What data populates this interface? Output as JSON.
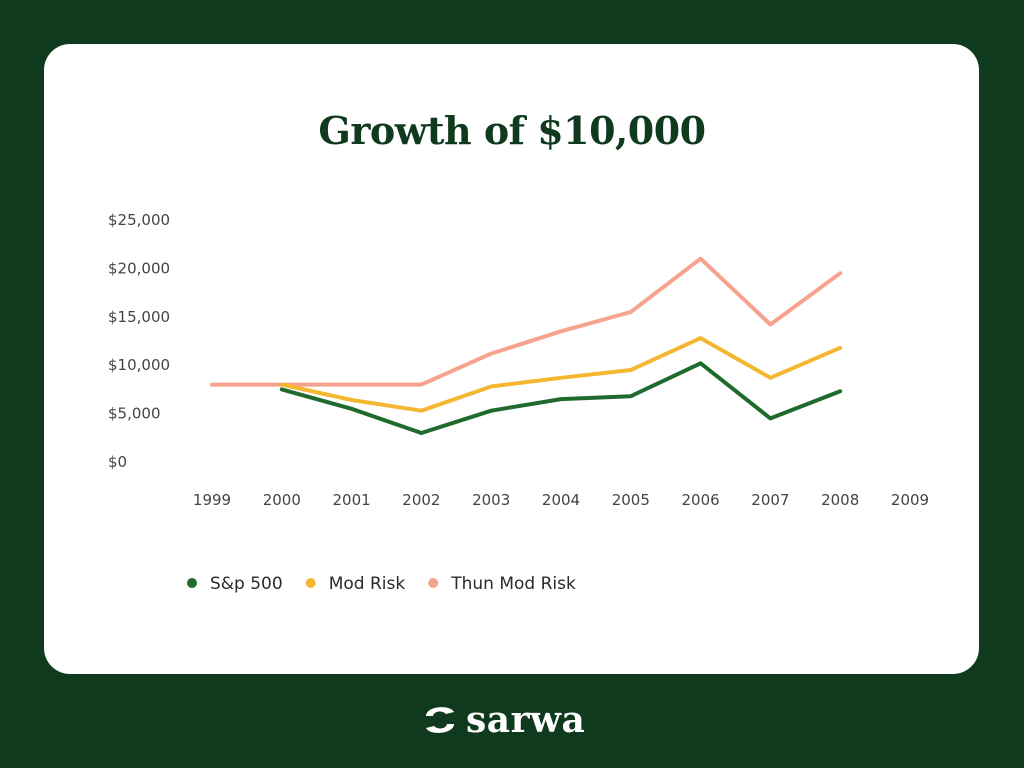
{
  "chart_data": {
    "type": "line",
    "title": "Growth of $10,000",
    "x": [
      "1999",
      "2000",
      "2001",
      "2002",
      "2003",
      "2004",
      "2005",
      "2006",
      "2007",
      "2008",
      "2009"
    ],
    "y_ticks": [
      "$0",
      "$5,000",
      "$10,000",
      "$15,000",
      "$20,000",
      "$25,000"
    ],
    "ylim": [
      0,
      25000
    ],
    "grid": false,
    "legend_position": "bottom-left",
    "series": [
      {
        "name": "S&p 500",
        "color": "#1f6b2e",
        "values": [
          null,
          7500,
          5500,
          3000,
          5300,
          6500,
          6800,
          10200,
          4500,
          7300,
          null
        ]
      },
      {
        "name": "Mod Risk",
        "color": "#f5b731",
        "values": [
          null,
          8000,
          6400,
          5300,
          7800,
          8700,
          9500,
          12800,
          8700,
          11800,
          null
        ]
      },
      {
        "name": "Thun Mod Risk",
        "color": "#f6a28c",
        "values": [
          8000,
          8000,
          8000,
          8000,
          11200,
          13500,
          15500,
          21000,
          14200,
          19500,
          null
        ]
      }
    ]
  },
  "brand": {
    "name": "sarwa"
  }
}
